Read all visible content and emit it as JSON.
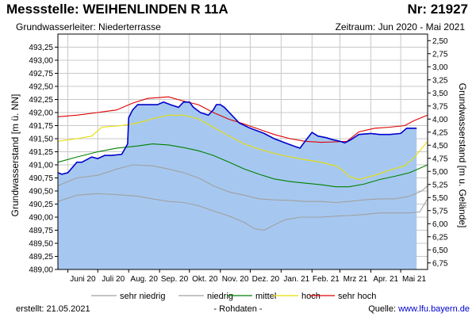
{
  "header": {
    "title": "Messstelle: WEIHENLINDEN R 11A",
    "number": "Nr: 21927",
    "aquifer": "Grundwasserleiter:   Niederterrasse",
    "period": "Zeitraum: Jun 2020 - Mai 2021"
  },
  "footer": {
    "created": "erstellt:  21.05.2021",
    "note": "- Rohdaten -",
    "source_label": "Quelle: ",
    "source_link": "www.lfu.bayern.de"
  },
  "chart_data": {
    "type": "area",
    "ylabel": "Grundwasserstand [m ü. NN]",
    "ylabel_right": "Grundwasserstand [m u. Gelände]",
    "ylim": [
      489.0,
      493.5
    ],
    "ylim_right": [
      6.875,
      2.375
    ],
    "y_ticks": [
      "489,00",
      "489,25",
      "489,50",
      "489,75",
      "490,00",
      "490,25",
      "490,50",
      "490,75",
      "491,00",
      "491,25",
      "491,50",
      "491,75",
      "492,00",
      "492,25",
      "492,50",
      "492,75",
      "493,00",
      "493,25"
    ],
    "y_ticks_right": [
      "6,75",
      "6,50",
      "6,25",
      "6,00",
      "5,75",
      "5,50",
      "5,25",
      "5,00",
      "4,75",
      "4,50",
      "4,25",
      "4,00",
      "3,75",
      "3,50",
      "3,25",
      "3,00",
      "2,75",
      "2,50"
    ],
    "x_ticks": [
      "Juni 20",
      "Juli 20",
      "Aug. 20",
      "Sep. 20",
      "Okt. 20",
      "Nov. 20",
      "Dez. 20",
      "Jan. 21",
      "Feb. 21",
      "Mrz 21",
      "Apr. 21",
      "Mai 21"
    ],
    "xlim": [
      "2020-05-22",
      "2021-05-28"
    ],
    "grid": true,
    "legend_position": "bottom",
    "colors": {
      "fill": "#a6c8f0",
      "measured": "#0000cc",
      "sehr_niedrig": "#a0a0a0",
      "niedrig": "#a0a0a0",
      "mittel": "#008000",
      "hoch": "#e8e000",
      "sehr_hoch": "#dd0000",
      "grid": "#c8c8c8",
      "frame": "#000000"
    },
    "series": [
      {
        "key": "measured",
        "x": [
          "2020-05-22",
          "2020-05-26",
          "2020-06-01",
          "2020-06-10",
          "2020-06-15",
          "2020-06-25",
          "2020-07-01",
          "2020-07-08",
          "2020-07-15",
          "2020-07-25",
          "2020-07-31",
          "2020-08-01",
          "2020-08-05",
          "2020-08-10",
          "2020-08-20",
          "2020-08-30",
          "2020-09-05",
          "2020-09-12",
          "2020-09-20",
          "2020-09-25",
          "2020-10-01",
          "2020-10-05",
          "2020-10-12",
          "2020-10-20",
          "2020-10-25",
          "2020-10-28",
          "2020-11-01",
          "2020-11-05",
          "2020-11-10",
          "2020-11-20",
          "2020-12-01",
          "2020-12-15",
          "2020-12-25",
          "2021-01-05",
          "2021-01-15",
          "2021-01-20",
          "2021-01-25",
          "2021-02-01",
          "2021-02-07",
          "2021-02-15",
          "2021-02-22",
          "2021-03-01",
          "2021-03-06",
          "2021-03-12",
          "2021-03-20",
          "2021-04-01",
          "2021-04-10",
          "2021-04-20",
          "2021-05-01",
          "2021-05-07",
          "2021-05-17"
        ],
        "values": [
          490.85,
          490.82,
          490.85,
          491.05,
          491.05,
          491.15,
          491.12,
          491.18,
          491.18,
          491.2,
          491.4,
          491.9,
          492.05,
          492.15,
          492.15,
          492.15,
          492.2,
          492.15,
          492.1,
          492.2,
          492.2,
          492.1,
          492.0,
          491.95,
          492.05,
          492.15,
          492.15,
          492.1,
          492.0,
          491.8,
          491.7,
          491.6,
          491.5,
          491.42,
          491.35,
          491.32,
          491.45,
          491.62,
          491.55,
          491.52,
          491.48,
          491.45,
          491.42,
          491.48,
          491.58,
          491.6,
          491.58,
          491.58,
          491.6,
          491.7,
          491.7
        ]
      },
      {
        "key": "sehr_hoch",
        "name": "sehr hoch",
        "x": [
          "2020-05-22",
          "2020-06-10",
          "2020-07-01",
          "2020-07-20",
          "2020-08-05",
          "2020-08-20",
          "2020-09-10",
          "2020-09-25",
          "2020-10-10",
          "2020-10-25",
          "2020-11-10",
          "2020-11-25",
          "2020-12-10",
          "2020-12-25",
          "2021-01-10",
          "2021-01-25",
          "2021-02-10",
          "2021-02-25",
          "2021-03-08",
          "2021-03-20",
          "2021-04-05",
          "2021-04-20",
          "2021-05-05",
          "2021-05-15",
          "2021-05-28"
        ],
        "values": [
          491.92,
          491.95,
          492.0,
          492.05,
          492.18,
          492.27,
          492.3,
          492.22,
          492.15,
          492.0,
          491.87,
          491.78,
          491.68,
          491.58,
          491.5,
          491.45,
          491.43,
          491.44,
          491.45,
          491.63,
          491.7,
          491.72,
          491.75,
          491.85,
          491.95
        ]
      },
      {
        "key": "hoch",
        "name": "hoch",
        "x": [
          "2020-05-22",
          "2020-06-10",
          "2020-06-25",
          "2020-07-05",
          "2020-07-25",
          "2020-08-10",
          "2020-08-25",
          "2020-09-10",
          "2020-09-25",
          "2020-10-10",
          "2020-10-25",
          "2020-11-10",
          "2020-11-25",
          "2020-12-10",
          "2020-12-25",
          "2021-01-10",
          "2021-01-25",
          "2021-02-10",
          "2021-02-25",
          "2021-03-05",
          "2021-03-10",
          "2021-03-20",
          "2021-04-05",
          "2021-04-20",
          "2021-05-05",
          "2021-05-15",
          "2021-05-28"
        ],
        "values": [
          491.45,
          491.5,
          491.55,
          491.72,
          491.75,
          491.8,
          491.88,
          491.95,
          491.95,
          491.88,
          491.72,
          491.55,
          491.4,
          491.3,
          491.22,
          491.15,
          491.1,
          491.05,
          490.98,
          490.88,
          490.78,
          490.72,
          490.8,
          490.9,
          490.98,
          491.15,
          491.45
        ]
      },
      {
        "key": "mittel",
        "name": "mittel",
        "x": [
          "2020-05-22",
          "2020-06-10",
          "2020-07-01",
          "2020-07-20",
          "2020-08-10",
          "2020-08-25",
          "2020-09-10",
          "2020-09-25",
          "2020-10-10",
          "2020-10-25",
          "2020-11-10",
          "2020-11-25",
          "2020-12-10",
          "2020-12-25",
          "2021-01-10",
          "2021-01-25",
          "2021-02-10",
          "2021-02-25",
          "2021-03-10",
          "2021-03-25",
          "2021-04-10",
          "2021-04-25",
          "2021-05-10",
          "2021-05-28"
        ],
        "values": [
          491.05,
          491.15,
          491.25,
          491.32,
          491.36,
          491.4,
          491.38,
          491.33,
          491.27,
          491.18,
          491.05,
          490.92,
          490.82,
          490.73,
          490.68,
          490.65,
          490.62,
          490.58,
          490.58,
          490.63,
          490.72,
          490.78,
          490.85,
          491.0
        ]
      },
      {
        "key": "niedrig",
        "name": "niedrig",
        "x": [
          "2020-05-22",
          "2020-06-10",
          "2020-07-01",
          "2020-07-20",
          "2020-08-05",
          "2020-08-25",
          "2020-09-10",
          "2020-09-25",
          "2020-10-10",
          "2020-10-25",
          "2020-11-10",
          "2020-11-25",
          "2020-12-10",
          "2020-12-25",
          "2021-01-10",
          "2021-01-25",
          "2021-02-10",
          "2021-02-25",
          "2021-03-10",
          "2021-03-25",
          "2021-04-10",
          "2021-04-25",
          "2021-05-10",
          "2021-05-22",
          "2021-05-28"
        ],
        "values": [
          490.6,
          490.75,
          490.8,
          490.92,
          491.0,
          490.98,
          490.92,
          490.85,
          490.75,
          490.6,
          490.48,
          490.42,
          490.35,
          490.33,
          490.32,
          490.3,
          490.3,
          490.28,
          490.3,
          490.33,
          490.35,
          490.35,
          490.4,
          490.5,
          490.6
        ]
      },
      {
        "key": "sehr_niedrig",
        "name": "sehr niedrig",
        "x": [
          "2020-05-22",
          "2020-06-10",
          "2020-07-01",
          "2020-07-20",
          "2020-08-10",
          "2020-08-25",
          "2020-09-10",
          "2020-09-25",
          "2020-10-10",
          "2020-10-25",
          "2020-11-10",
          "2020-11-25",
          "2020-12-05",
          "2020-12-15",
          "2020-12-25",
          "2021-01-05",
          "2021-01-20",
          "2021-02-10",
          "2021-02-25",
          "2021-03-10",
          "2021-03-25",
          "2021-04-10",
          "2021-04-25",
          "2021-05-10",
          "2021-05-20",
          "2021-05-28"
        ],
        "values": [
          490.3,
          490.42,
          490.45,
          490.43,
          490.4,
          490.35,
          490.3,
          490.28,
          490.22,
          490.12,
          490.02,
          489.9,
          489.78,
          489.75,
          489.85,
          489.95,
          490.0,
          490.0,
          490.02,
          490.03,
          490.05,
          490.08,
          490.08,
          490.08,
          490.1,
          490.35
        ]
      }
    ]
  }
}
